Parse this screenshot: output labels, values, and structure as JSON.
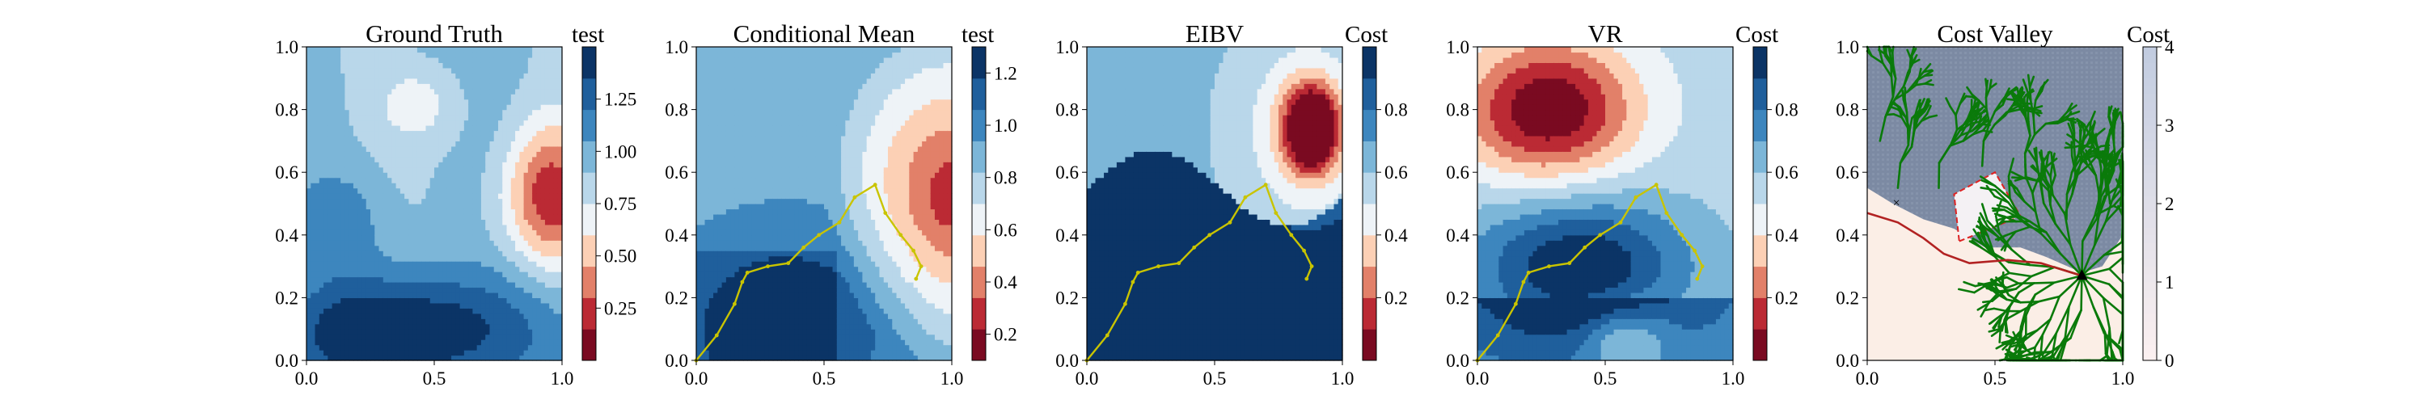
{
  "figure": {
    "panels": [
      {
        "title": "Ground Truth",
        "colorbar_label": "test"
      },
      {
        "title": "Conditional Mean",
        "colorbar_label": "test"
      },
      {
        "title": "EIBV",
        "colorbar_label": "Cost"
      },
      {
        "title": "VR",
        "colorbar_label": "Cost"
      },
      {
        "title": "Cost Valley",
        "colorbar_label": "Cost"
      }
    ]
  },
  "chart_data": [
    {
      "type": "heatmap",
      "title": "Ground Truth",
      "xlim": [
        0.0,
        1.0
      ],
      "ylim": [
        0.0,
        1.0
      ],
      "x_ticks": [
        "0.0",
        "0.5",
        "1.0"
      ],
      "y_ticks": [
        "0.0",
        "0.2",
        "0.4",
        "0.6",
        "0.8",
        "1.0"
      ],
      "colormap": "RdBu",
      "colorbar": {
        "label": "test",
        "range": [
          0.0,
          1.5
        ],
        "ticks": [
          "0.25",
          "0.50",
          "0.75",
          "1.00",
          "1.25"
        ]
      },
      "features": [
        {
          "kind": "low",
          "value": 0.15,
          "x": 0.93,
          "y": 0.52
        },
        {
          "kind": "low",
          "value": 0.85,
          "x": 0.45,
          "y": 0.8
        },
        {
          "kind": "high",
          "value": 1.45,
          "x": 0.22,
          "y": 0.08
        },
        {
          "kind": "high",
          "value": 1.35,
          "x": 0.6,
          "y": 0.1
        }
      ]
    },
    {
      "type": "heatmap",
      "title": "Conditional Mean",
      "xlim": [
        0.0,
        1.0
      ],
      "ylim": [
        0.0,
        1.0
      ],
      "x_ticks": [
        "0.0",
        "0.5",
        "1.0"
      ],
      "y_ticks": [
        "0.0",
        "0.2",
        "0.4",
        "0.6",
        "0.8",
        "1.0"
      ],
      "colormap": "RdBu",
      "colorbar": {
        "label": "test",
        "range": [
          0.1,
          1.3
        ],
        "ticks": [
          "0.2",
          "0.4",
          "0.6",
          "0.8",
          "1.0",
          "1.2"
        ]
      },
      "features": [
        {
          "kind": "low",
          "value": 0.2,
          "x": 0.98,
          "y": 0.52
        },
        {
          "kind": "high",
          "value": 1.25,
          "x": 0.42,
          "y": 0.12
        }
      ],
      "path": {
        "x": [
          0.0,
          0.08,
          0.15,
          0.18,
          0.2,
          0.28,
          0.36,
          0.42,
          0.48,
          0.56,
          0.62,
          0.7,
          0.74,
          0.8,
          0.85,
          0.88,
          0.86
        ],
        "y": [
          0.0,
          0.08,
          0.18,
          0.25,
          0.28,
          0.3,
          0.31,
          0.36,
          0.4,
          0.44,
          0.52,
          0.56,
          0.47,
          0.4,
          0.35,
          0.3,
          0.26
        ],
        "color": "#c9c400"
      }
    },
    {
      "type": "heatmap",
      "title": "EIBV",
      "xlim": [
        0.0,
        1.0
      ],
      "ylim": [
        0.0,
        1.0
      ],
      "x_ticks": [
        "0.0",
        "0.5",
        "1.0"
      ],
      "y_ticks": [
        "0.0",
        "0.2",
        "0.4",
        "0.6",
        "0.8",
        "1.0"
      ],
      "colormap": "RdBu",
      "colorbar": {
        "label": "Cost",
        "range": [
          0.0,
          1.0
        ],
        "ticks": [
          "0.2",
          "0.4",
          "0.6",
          "0.8"
        ]
      },
      "features": [
        {
          "kind": "low",
          "value": 0.05,
          "x": 0.88,
          "y": 0.74
        },
        {
          "kind": "high",
          "value": 0.95,
          "x": 0.3,
          "y": 0.25
        }
      ],
      "path": {
        "x": [
          0.0,
          0.08,
          0.15,
          0.18,
          0.2,
          0.28,
          0.36,
          0.42,
          0.48,
          0.56,
          0.62,
          0.7,
          0.74,
          0.8,
          0.85,
          0.88,
          0.86
        ],
        "y": [
          0.0,
          0.08,
          0.18,
          0.25,
          0.28,
          0.3,
          0.31,
          0.36,
          0.4,
          0.44,
          0.52,
          0.56,
          0.47,
          0.4,
          0.35,
          0.3,
          0.26
        ],
        "color": "#c9c400"
      }
    },
    {
      "type": "heatmap",
      "title": "VR",
      "xlim": [
        0.0,
        1.0
      ],
      "ylim": [
        0.0,
        1.0
      ],
      "x_ticks": [
        "0.0",
        "0.5",
        "1.0"
      ],
      "y_ticks": [
        "0.0",
        "0.2",
        "0.4",
        "0.6",
        "0.8",
        "1.0"
      ],
      "colormap": "RdBu",
      "colorbar": {
        "label": "Cost",
        "range": [
          0.0,
          1.0
        ],
        "ticks": [
          "0.2",
          "0.4",
          "0.6",
          "0.8"
        ]
      },
      "features": [
        {
          "kind": "low",
          "value": 0.0,
          "x": 0.28,
          "y": 0.8
        },
        {
          "kind": "high",
          "value": 1.0,
          "x": 0.4,
          "y": 0.3
        },
        {
          "kind": "low",
          "value": 0.6,
          "x": 0.55,
          "y": 0.05
        }
      ],
      "path": {
        "x": [
          0.0,
          0.08,
          0.15,
          0.18,
          0.2,
          0.28,
          0.36,
          0.42,
          0.48,
          0.56,
          0.62,
          0.7,
          0.74,
          0.8,
          0.85,
          0.88,
          0.86
        ],
        "y": [
          0.0,
          0.08,
          0.18,
          0.25,
          0.28,
          0.3,
          0.31,
          0.36,
          0.4,
          0.44,
          0.52,
          0.56,
          0.47,
          0.4,
          0.35,
          0.3,
          0.26
        ],
        "color": "#c9c400"
      }
    },
    {
      "type": "heatmap",
      "title": "Cost Valley",
      "xlim": [
        0.0,
        1.0
      ],
      "ylim": [
        0.0,
        1.0
      ],
      "x_ticks": [
        "0.0",
        "0.5",
        "1.0"
      ],
      "y_ticks": [
        "0.0",
        "0.2",
        "0.4",
        "0.6",
        "0.8",
        "1.0"
      ],
      "colormap": "Blues (low=#fbeee6, high=#6b7d9a)",
      "colorbar": {
        "label": "Cost",
        "range": [
          0,
          4
        ],
        "ticks": [
          "0",
          "1",
          "2",
          "3",
          "4"
        ]
      },
      "tree_color": "#0a7a0a",
      "route_color": "#b22222",
      "obstacle_outline_color": "#dd2222",
      "current_location": {
        "x": 0.84,
        "y": 0.27
      },
      "obstacle_polygon": {
        "x": [
          0.36,
          0.6,
          0.5,
          0.34
        ],
        "y": [
          0.38,
          0.46,
          0.6,
          0.53
        ]
      }
    }
  ]
}
